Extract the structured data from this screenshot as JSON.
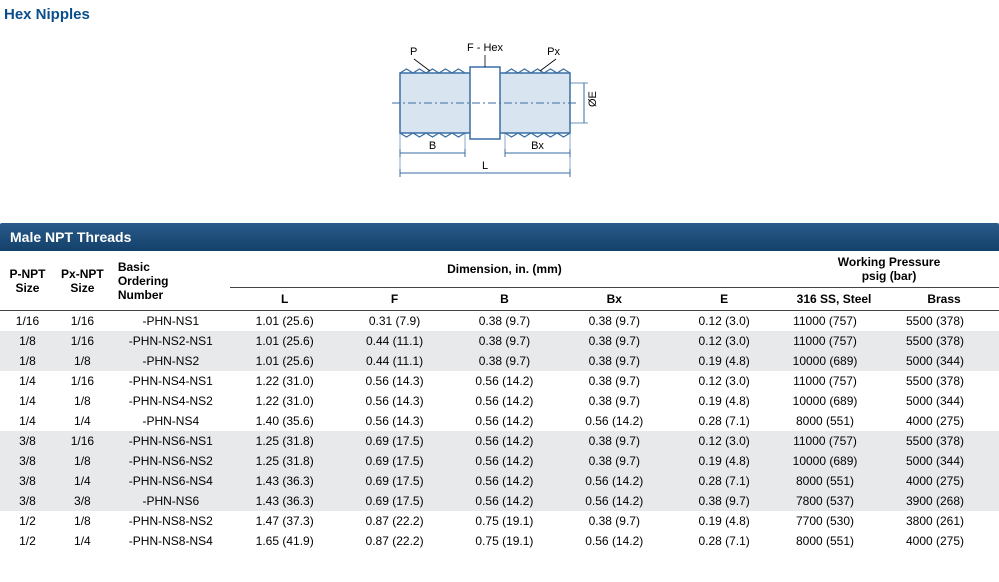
{
  "title": "Hex Nipples",
  "diagram": {
    "labels": {
      "P": "P",
      "FHex": "F - Hex",
      "Px": "Px",
      "B": "B",
      "Bx": "Bx",
      "L": "L",
      "E": "ØE"
    },
    "stroke": "#3a6ea5",
    "fill": "#d8e4f0"
  },
  "table": {
    "header_bar": "Male NPT Threads",
    "cols": {
      "pnpt": "P-NPT\nSize",
      "pxnpt": "Px-NPT\nSize",
      "order": "Basic\nOrdering\nNumber",
      "dim_group": "Dimension, in. (mm)",
      "press_group": "Working Pressure\npsig (bar)",
      "L": "L",
      "F": "F",
      "B": "B",
      "Bx": "Bx",
      "E": "E",
      "ss": "316 SS, Steel",
      "brass": "Brass"
    },
    "rows": [
      {
        "band": false,
        "pnpt": "1/16",
        "pxnpt": "1/16",
        "order": "-PHN-NS1",
        "L": "1.01 (25.6)",
        "F": "0.31 (7.9)",
        "B": "0.38 (9.7)",
        "Bx": "0.38 (9.7)",
        "E": "0.12 (3.0)",
        "ss": "11000 (757)",
        "brass": "5500 (378)"
      },
      {
        "band": true,
        "pnpt": "1/8",
        "pxnpt": "1/16",
        "order": "-PHN-NS2-NS1",
        "L": "1.01 (25.6)",
        "F": "0.44 (11.1)",
        "B": "0.38 (9.7)",
        "Bx": "0.38 (9.7)",
        "E": "0.12 (3.0)",
        "ss": "11000 (757)",
        "brass": "5500 (378)"
      },
      {
        "band": true,
        "pnpt": "1/8",
        "pxnpt": "1/8",
        "order": "-PHN-NS2",
        "L": "1.01 (25.6)",
        "F": "0.44 (11.1)",
        "B": "0.38 (9.7)",
        "Bx": "0.38 (9.7)",
        "E": "0.19 (4.8)",
        "ss": "10000 (689)",
        "brass": "5000 (344)"
      },
      {
        "band": false,
        "pnpt": "1/4",
        "pxnpt": "1/16",
        "order": "-PHN-NS4-NS1",
        "L": "1.22 (31.0)",
        "F": "0.56 (14.3)",
        "B": "0.56 (14.2)",
        "Bx": "0.38 (9.7)",
        "E": "0.12 (3.0)",
        "ss": "11000 (757)",
        "brass": "5500 (378)"
      },
      {
        "band": false,
        "pnpt": "1/4",
        "pxnpt": "1/8",
        "order": "-PHN-NS4-NS2",
        "L": "1.22 (31.0)",
        "F": "0.56 (14.3)",
        "B": "0.56 (14.2)",
        "Bx": "0.38 (9.7)",
        "E": "0.19 (4.8)",
        "ss": "10000 (689)",
        "brass": "5000 (344)"
      },
      {
        "band": false,
        "pnpt": "1/4",
        "pxnpt": "1/4",
        "order": "-PHN-NS4",
        "L": "1.40 (35.6)",
        "F": "0.56 (14.3)",
        "B": "0.56 (14.2)",
        "Bx": "0.56 (14.2)",
        "E": "0.28 (7.1)",
        "ss": "8000 (551)",
        "brass": "4000 (275)"
      },
      {
        "band": true,
        "pnpt": "3/8",
        "pxnpt": "1/16",
        "order": "-PHN-NS6-NS1",
        "L": "1.25 (31.8)",
        "F": "0.69 (17.5)",
        "B": "0.56 (14.2)",
        "Bx": "0.38 (9.7)",
        "E": "0.12 (3.0)",
        "ss": "11000 (757)",
        "brass": "5500 (378)"
      },
      {
        "band": true,
        "pnpt": "3/8",
        "pxnpt": "1/8",
        "order": "-PHN-NS6-NS2",
        "L": "1.25 (31.8)",
        "F": "0.69 (17.5)",
        "B": "0.56 (14.2)",
        "Bx": "0.38 (9.7)",
        "E": "0.19 (4.8)",
        "ss": "10000 (689)",
        "brass": "5000 (344)"
      },
      {
        "band": true,
        "pnpt": "3/8",
        "pxnpt": "1/4",
        "order": "-PHN-NS6-NS4",
        "L": "1.43 (36.3)",
        "F": "0.69 (17.5)",
        "B": "0.56 (14.2)",
        "Bx": "0.56 (14.2)",
        "E": "0.28 (7.1)",
        "ss": "8000 (551)",
        "brass": "4000 (275)"
      },
      {
        "band": true,
        "pnpt": "3/8",
        "pxnpt": "3/8",
        "order": "-PHN-NS6",
        "L": "1.43 (36.3)",
        "F": "0.69 (17.5)",
        "B": "0.56 (14.2)",
        "Bx": "0.56 (14.2)",
        "E": "0.38 (9.7)",
        "ss": "7800 (537)",
        "brass": "3900 (268)"
      },
      {
        "band": false,
        "pnpt": "1/2",
        "pxnpt": "1/8",
        "order": "-PHN-NS8-NS2",
        "L": "1.47 (37.3)",
        "F": "0.87 (22.2)",
        "B": "0.75 (19.1)",
        "Bx": "0.38 (9.7)",
        "E": "0.19 (4.8)",
        "ss": "7700 (530)",
        "brass": "3800 (261)"
      },
      {
        "band": false,
        "pnpt": "1/2",
        "pxnpt": "1/4",
        "order": "-PHN-NS8-NS4",
        "L": "1.65 (41.9)",
        "F": "0.87 (22.2)",
        "B": "0.75 (19.1)",
        "Bx": "0.56 (14.2)",
        "E": "0.28 (7.1)",
        "ss": "8000 (551)",
        "brass": "4000 (275)"
      }
    ]
  }
}
